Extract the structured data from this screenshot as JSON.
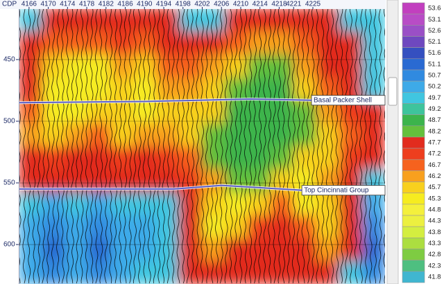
{
  "chart_data": {
    "type": "heatmap",
    "x_label": "CDP",
    "xlim": [
      4164,
      4240
    ],
    "xticks": [
      4166,
      4170,
      4174,
      4178,
      4182,
      4186,
      4190,
      4194,
      4198,
      4202,
      4206,
      4210,
      4214,
      4218,
      4221,
      4225
    ],
    "ylim": [
      409,
      632
    ],
    "yticks": [
      450,
      500,
      550,
      600
    ],
    "z": [
      [
        49.7,
        47.5,
        47.5,
        47.5,
        47.5,
        47.5,
        47.5,
        49.7,
        49.7,
        47.5,
        47.5,
        47.5,
        47.5,
        47.5,
        49.7,
        49.7
      ],
      [
        47.5,
        46.7,
        46.7,
        46.7,
        47.2,
        46.7,
        47.5,
        47.5,
        47.5,
        46.7,
        46.2,
        46.2,
        46.7,
        47.5,
        47.5,
        49.7
      ],
      [
        47.5,
        45.7,
        45.3,
        45.3,
        46.2,
        45.7,
        46.7,
        46.7,
        46.2,
        45.7,
        48.2,
        48.2,
        46.2,
        47.5,
        47.5,
        49.7
      ],
      [
        47.5,
        45.3,
        45.3,
        45.3,
        45.7,
        45.3,
        46.2,
        46.2,
        45.7,
        48.2,
        48.7,
        48.7,
        45.7,
        46.7,
        47.5,
        49.7
      ],
      [
        46.7,
        45.3,
        45.3,
        45.7,
        45.7,
        45.3,
        45.7,
        45.7,
        45.7,
        48.7,
        48.7,
        48.7,
        48.2,
        46.2,
        47.2,
        47.5
      ],
      [
        46.2,
        45.7,
        46.2,
        46.7,
        45.7,
        46.2,
        46.2,
        45.7,
        48.2,
        48.7,
        48.7,
        48.7,
        48.2,
        45.7,
        46.7,
        47.5
      ],
      [
        47.5,
        47.2,
        47.5,
        47.5,
        47.2,
        47.5,
        47.2,
        46.7,
        48.2,
        48.7,
        48.7,
        48.2,
        45.7,
        45.7,
        47.2,
        47.5
      ],
      [
        47.5,
        47.5,
        47.5,
        47.5,
        47.5,
        47.5,
        47.5,
        47.2,
        46.2,
        48.2,
        48.2,
        45.7,
        45.3,
        46.2,
        47.5,
        49.7
      ],
      [
        49.7,
        50.2,
        49.7,
        50.2,
        49.7,
        49.7,
        49.7,
        47.5,
        45.7,
        45.3,
        45.7,
        46.7,
        45.3,
        45.7,
        47.5,
        50.2
      ],
      [
        50.2,
        50.7,
        50.2,
        50.7,
        50.2,
        50.2,
        49.7,
        47.5,
        45.3,
        45.7,
        47.2,
        47.5,
        46.7,
        45.7,
        47.5,
        50.7
      ],
      [
        50.2,
        51.1,
        50.2,
        51.1,
        50.2,
        50.2,
        49.7,
        47.5,
        46.2,
        47.5,
        47.5,
        47.5,
        47.5,
        46.2,
        47.5,
        51.1
      ],
      [
        50.2,
        50.7,
        50.2,
        50.7,
        50.2,
        49.7,
        49.7,
        47.5,
        47.5,
        47.5,
        47.5,
        47.5,
        47.5,
        47.5,
        49.7,
        50.7
      ]
    ],
    "colorbar": [
      {
        "value": 53.6,
        "color": "#c23fbf"
      },
      {
        "value": 53.1,
        "color": "#b84cc6"
      },
      {
        "value": 52.6,
        "color": "#9a4fc6"
      },
      {
        "value": 52.1,
        "color": "#6e48bf"
      },
      {
        "value": 51.6,
        "color": "#3550c0"
      },
      {
        "value": 51.1,
        "color": "#2a6ad2"
      },
      {
        "value": 50.7,
        "color": "#308ae0"
      },
      {
        "value": 50.2,
        "color": "#3eaae8"
      },
      {
        "value": 49.7,
        "color": "#40c6e0"
      },
      {
        "value": 49.2,
        "color": "#3ec49c"
      },
      {
        "value": 48.7,
        "color": "#3cb44c"
      },
      {
        "value": 48.2,
        "color": "#64c03c"
      },
      {
        "value": 47.7,
        "color": "#e22c1e"
      },
      {
        "value": 47.2,
        "color": "#ee3e1e"
      },
      {
        "value": 46.7,
        "color": "#f6621e"
      },
      {
        "value": 46.2,
        "color": "#f8a01e"
      },
      {
        "value": 45.7,
        "color": "#f8d01e"
      },
      {
        "value": 45.3,
        "color": "#f6ec20"
      },
      {
        "value": 44.8,
        "color": "#f4f03c"
      },
      {
        "value": 44.3,
        "color": "#ecf040"
      },
      {
        "value": 43.8,
        "color": "#d4ee40"
      },
      {
        "value": 43.3,
        "color": "#acde40"
      },
      {
        "value": 42.8,
        "color": "#7ecc42"
      },
      {
        "value": 42.3,
        "color": "#4ebf80"
      },
      {
        "value": 41.8,
        "color": "#40b6d0"
      }
    ],
    "horizons": [
      {
        "name": "Basal Packer Shell",
        "x": [
          4164,
          4190,
          4212,
          4225
        ],
        "y": [
          485,
          484,
          482,
          483
        ]
      },
      {
        "name": "Top Cincinnati Group",
        "x": [
          4164,
          4196,
          4206,
          4223
        ],
        "y": [
          555,
          555,
          552,
          556
        ]
      }
    ]
  }
}
